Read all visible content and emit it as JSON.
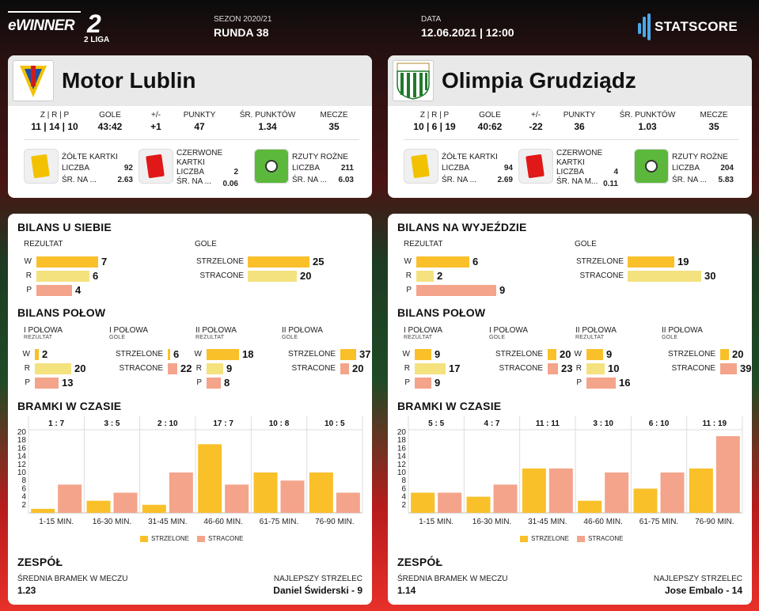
{
  "header": {
    "brand": "eWINNER",
    "liga_num": "2",
    "liga_txt": "2 LIGA",
    "season_label": "SEZON 2020/21",
    "round": "RUNDA 38",
    "date_label": "DATA",
    "date_value": "12.06.2021 | 12:00",
    "provider": "STATSCORE"
  },
  "colors": {
    "scored": "#f9c02a",
    "conceded": "#f4a48a",
    "pale": "#f4e27f"
  },
  "labels": {
    "zrp": "Z | R | P",
    "gole": "GOLE",
    "diff": "+/-",
    "punkty": "PUNKTY",
    "sr_punktow": "ŚR. PUNKTÓW",
    "mecze": "MECZE",
    "liczba": "LICZBA",
    "bilans_polow": "BILANS POŁOW",
    "rezultat": "REZULTAT",
    "gole_lbl": "GOLE",
    "w": "W",
    "r": "R",
    "p": "P",
    "strzelone": "STRZELONE",
    "stracone": "STRACONE",
    "half1": "I POŁOWA",
    "half2": "II POŁOWA",
    "rezultat_small": "REZULTAT",
    "gole_small": "GOLE",
    "bramki": "BRAMKI W CZASIE",
    "zespol": "ZESPÓŁ",
    "srednia": "ŚREDNIA BRAMEK W MECZU",
    "najlepszy": "NAJLEPSZY STRZELEC",
    "legend_scored": "STRZELONE",
    "legend_conceded": "STRACONE"
  },
  "teams": [
    {
      "name": "Motor Lublin",
      "zrp": "11 | 14 | 10",
      "gole": "43:42",
      "diff": "+1",
      "punkty": "47",
      "sr_punktow": "1.34",
      "mecze": "35",
      "yellow": {
        "title": "ŻÓŁTE KARTKI",
        "count": "92",
        "avg_label": "ŚR. NA ...",
        "avg": "2.63"
      },
      "red": {
        "title1": "CZERWONE",
        "title2": "KARTKI",
        "count": "2",
        "avg_label": "ŚR. NA ...",
        "avg": "0.06"
      },
      "corners": {
        "title": "RZUTY ROŻNE",
        "count": "211",
        "avg_label": "ŚR. NA ...",
        "avg": "6.03"
      },
      "bilans_title": "BILANS U SIEBIE",
      "bilans": {
        "w": 7,
        "r": 6,
        "p": 4,
        "scored": 25,
        "conceded": 20
      },
      "halves": {
        "h1": {
          "w": 2,
          "r": 20,
          "p": 13,
          "scored": 6,
          "conceded": 22
        },
        "h2": {
          "w": 18,
          "r": 9,
          "p": 8,
          "scored": 37,
          "conceded": 20
        }
      },
      "chart_data": {
        "type": "bar",
        "categories": [
          "1-15 MIN.",
          "16-30 MIN.",
          "31-45 MIN.",
          "46-60 MIN.",
          "61-75 MIN.",
          "76-90 MIN."
        ],
        "headers": [
          "1 : 7",
          "3 : 5",
          "2 : 10",
          "17 : 7",
          "10 : 8",
          "10 : 5"
        ],
        "series": [
          {
            "name": "STRZELONE",
            "values": [
              1,
              3,
              2,
              17,
              10,
              10
            ]
          },
          {
            "name": "STRACONE",
            "values": [
              7,
              5,
              10,
              7,
              8,
              5
            ]
          }
        ],
        "ylim": [
          0,
          20
        ],
        "yticks": [
          2,
          4,
          6,
          8,
          10,
          12,
          14,
          16,
          18,
          20
        ]
      },
      "avg_goals": "1.23",
      "top_scorer": "Daniel Świderski - 9"
    },
    {
      "name": "Olimpia Grudziądz",
      "zrp": "10 | 6 | 19",
      "gole": "40:62",
      "diff": "-22",
      "punkty": "36",
      "sr_punktow": "1.03",
      "mecze": "35",
      "yellow": {
        "title": "ŻÓŁTE KARTKI",
        "count": "94",
        "avg_label": "ŚR. NA ...",
        "avg": "2.69"
      },
      "red": {
        "title1": "CZERWONE",
        "title2": "KARTKI",
        "count": "4",
        "avg_label": "ŚR. NA M...",
        "avg": "0.11"
      },
      "corners": {
        "title": "RZUTY ROŻNE",
        "count": "204",
        "avg_label": "ŚR. NA ...",
        "avg": "5.83"
      },
      "bilans_title": "BILANS NA WYJEŹDZIE",
      "bilans": {
        "w": 6,
        "r": 2,
        "p": 9,
        "scored": 19,
        "conceded": 30
      },
      "halves": {
        "h1": {
          "w": 9,
          "r": 17,
          "p": 9,
          "scored": 20,
          "conceded": 23
        },
        "h2": {
          "w": 9,
          "r": 10,
          "p": 16,
          "scored": 20,
          "conceded": 39
        }
      },
      "chart_data": {
        "type": "bar",
        "categories": [
          "1-15 MIN.",
          "16-30 MIN.",
          "31-45 MIN.",
          "46-60 MIN.",
          "61-75 MIN.",
          "76-90 MIN."
        ],
        "headers": [
          "5 : 5",
          "4 : 7",
          "11 : 11",
          "3 : 10",
          "6 : 10",
          "11 : 19"
        ],
        "series": [
          {
            "name": "STRZELONE",
            "values": [
              5,
              4,
              11,
              3,
              6,
              11
            ]
          },
          {
            "name": "STRACONE",
            "values": [
              5,
              7,
              11,
              10,
              10,
              19
            ]
          }
        ],
        "ylim": [
          0,
          20
        ],
        "yticks": [
          2,
          4,
          6,
          8,
          10,
          12,
          14,
          16,
          18,
          20
        ]
      },
      "avg_goals": "1.14",
      "top_scorer": "Jose Embalo - 14"
    }
  ]
}
